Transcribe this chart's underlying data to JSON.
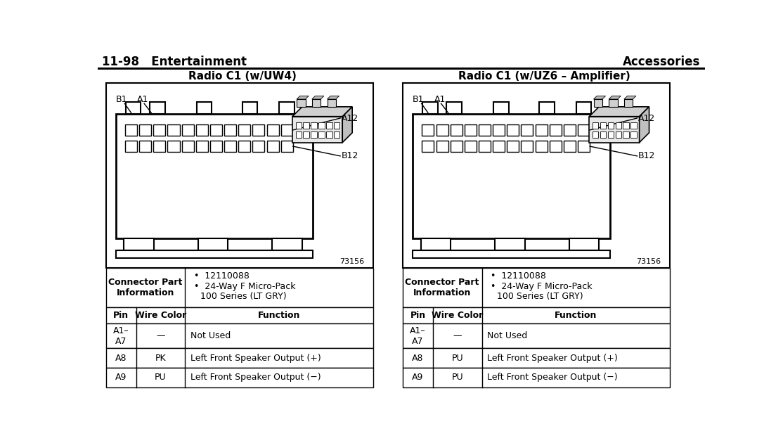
{
  "title_left": "11-98   Entertainment",
  "title_right": "Accessories",
  "bg_color": "#ffffff",
  "diagram1_title": "Radio C1 (w/UW4)",
  "diagram2_title": "Radio C1 (w/UZ6 – Amplifier)",
  "table_rows_left": [
    [
      "A1–\nA7",
      "—",
      "Not Used"
    ],
    [
      "A8",
      "PK",
      "Left Front Speaker Output (+)"
    ],
    [
      "A9",
      "PU",
      "Left Front Speaker Output (−)"
    ]
  ],
  "table_rows_right": [
    [
      "A1–\nA7",
      "—",
      "Not Used"
    ],
    [
      "A8",
      "PU",
      "Left Front Speaker Output (+)"
    ],
    [
      "A9",
      "PU",
      "Left Front Speaker Output (−)"
    ]
  ],
  "diagram_number": "73156"
}
